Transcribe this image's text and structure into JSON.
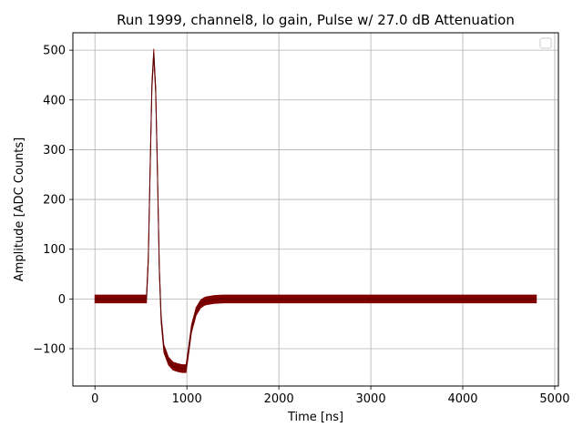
{
  "chart_data": {
    "type": "line",
    "title": "Run 1999, channel8, lo gain, Pulse w/ 27.0 dB Attenuation",
    "xlabel": "Time [ns]",
    "ylabel": "Amplitude [ADC Counts]",
    "xlim": [
      -240,
      5040
    ],
    "ylim": [
      -175,
      535
    ],
    "xticks": [
      0,
      1000,
      2000,
      3000,
      4000,
      5000
    ],
    "xtick_labels": [
      "0",
      "1000",
      "2000",
      "3000",
      "4000",
      "5000"
    ],
    "yticks": [
      -100,
      0,
      100,
      200,
      300,
      400,
      500
    ],
    "ytick_labels": [
      "−100",
      "0",
      "100",
      "200",
      "300",
      "400",
      "500"
    ],
    "grid": true,
    "legend": {
      "placement": "top-right",
      "entries": []
    },
    "series": [
      {
        "color": "#800000",
        "noise_band": 8,
        "x": [
          0,
          560,
          580,
          600,
          620,
          640,
          660,
          680,
          700,
          720,
          750,
          800,
          850,
          900,
          950,
          990,
          1010,
          1050,
          1100,
          1150,
          1200,
          1300,
          1400,
          1600,
          2000,
          3000,
          4000,
          4800
        ],
        "y": [
          0,
          0,
          80,
          260,
          430,
          495,
          420,
          250,
          60,
          -40,
          -100,
          -125,
          -135,
          -138,
          -140,
          -140,
          -115,
          -60,
          -25,
          -10,
          -4,
          -1,
          0,
          0,
          0,
          0,
          0,
          0
        ]
      }
    ]
  }
}
